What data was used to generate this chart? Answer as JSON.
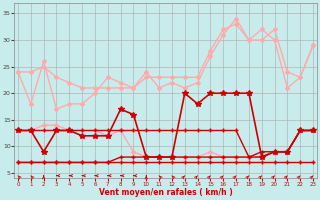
{
  "background_color": "#c8ecec",
  "grid_color": "#aaaaaa",
  "xlabel": "Vent moyen/en rafales ( km/h )",
  "xlabel_color": "#cc0000",
  "yticks": [
    5,
    10,
    15,
    20,
    25,
    30,
    35
  ],
  "xticks": [
    0,
    1,
    2,
    3,
    4,
    5,
    6,
    7,
    8,
    9,
    10,
    11,
    12,
    13,
    14,
    15,
    16,
    17,
    18,
    19,
    20,
    21,
    22,
    23
  ],
  "xlim": [
    -0.3,
    23.3
  ],
  "ylim": [
    4.0,
    37.0
  ],
  "lines": [
    {
      "x": [
        0,
        1,
        2,
        3,
        4,
        5,
        6,
        7,
        8,
        9,
        10,
        11,
        12,
        13,
        14,
        15,
        16,
        17,
        18,
        19,
        20,
        21,
        22,
        23
      ],
      "y": [
        24,
        24,
        25,
        23,
        22,
        21,
        21,
        21,
        21,
        21,
        23,
        23,
        23,
        23,
        23,
        28,
        32,
        33,
        30,
        30,
        32,
        24,
        23,
        29
      ],
      "color": "#ffaaaa",
      "lw": 1.0,
      "marker": "D",
      "ms": 2.0
    },
    {
      "x": [
        0,
        1,
        2,
        3,
        4,
        5,
        6,
        7,
        8,
        9,
        10,
        11,
        12,
        13,
        14,
        15,
        16,
        17,
        18,
        19,
        20,
        21,
        22,
        23
      ],
      "y": [
        24,
        18,
        26,
        17,
        18,
        18,
        20,
        23,
        22,
        21,
        24,
        21,
        22,
        21,
        22,
        27,
        31,
        34,
        30,
        32,
        30,
        21,
        23,
        29
      ],
      "color": "#ffaaaa",
      "lw": 1.0,
      "marker": "D",
      "ms": 2.0
    },
    {
      "x": [
        0,
        1,
        2,
        3,
        4,
        5,
        6,
        7,
        8,
        9,
        10,
        11,
        12,
        13,
        14,
        15,
        16,
        17,
        18,
        19,
        20,
        21,
        22,
        23
      ],
      "y": [
        13,
        13,
        14,
        14,
        13,
        13,
        13,
        12,
        13,
        9,
        8,
        8,
        8,
        8,
        8,
        9,
        8,
        8,
        8,
        8,
        9,
        9,
        13,
        13
      ],
      "color": "#ffaaaa",
      "lw": 1.0,
      "marker": "D",
      "ms": 2.0
    },
    {
      "x": [
        0,
        1,
        2,
        3,
        4,
        5,
        6,
        7,
        8,
        9,
        10,
        11,
        12,
        13,
        14,
        15,
        16,
        17,
        18,
        19,
        20,
        21,
        22,
        23
      ],
      "y": [
        13,
        13,
        9,
        13,
        13,
        12,
        12,
        12,
        17,
        16,
        8,
        8,
        8,
        20,
        18,
        20,
        20,
        20,
        20,
        8,
        9,
        9,
        13,
        13
      ],
      "color": "#cc0000",
      "lw": 1.2,
      "marker": "*",
      "ms": 4.0
    },
    {
      "x": [
        0,
        1,
        2,
        3,
        4,
        5,
        6,
        7,
        8,
        9,
        10,
        11,
        12,
        13,
        14,
        15,
        16,
        17,
        18,
        19,
        20,
        21,
        22,
        23
      ],
      "y": [
        13,
        13,
        13,
        13,
        13,
        13,
        13,
        13,
        13,
        13,
        13,
        13,
        13,
        13,
        13,
        13,
        13,
        13,
        8,
        9,
        9,
        9,
        13,
        13
      ],
      "color": "#cc0000",
      "lw": 1.0,
      "marker": "+",
      "ms": 3.5
    },
    {
      "x": [
        0,
        1,
        2,
        3,
        4,
        5,
        6,
        7,
        8,
        9,
        10,
        11,
        12,
        13,
        14,
        15,
        16,
        17,
        18,
        19,
        20,
        21,
        22,
        23
      ],
      "y": [
        7,
        7,
        7,
        7,
        7,
        7,
        7,
        7,
        7,
        7,
        7,
        7,
        7,
        7,
        7,
        7,
        7,
        7,
        7,
        7,
        7,
        7,
        7,
        7
      ],
      "color": "#cc0000",
      "lw": 1.0,
      "marker": "+",
      "ms": 3.0
    },
    {
      "x": [
        0,
        1,
        2,
        3,
        4,
        5,
        6,
        7,
        8,
        9,
        10,
        11,
        12,
        13,
        14,
        15,
        16,
        17,
        18,
        19,
        20,
        21,
        22,
        23
      ],
      "y": [
        7,
        7,
        7,
        7,
        7,
        7,
        7,
        7,
        8,
        8,
        8,
        8,
        8,
        8,
        8,
        8,
        8,
        8,
        8,
        8,
        9,
        9,
        13,
        13
      ],
      "color": "#cc0000",
      "lw": 1.0,
      "marker": "+",
      "ms": 2.5
    }
  ],
  "wind_arrows": {
    "x": [
      0,
      1,
      2,
      3,
      4,
      5,
      6,
      7,
      8,
      9,
      10,
      11,
      12,
      13,
      14,
      15,
      16,
      17,
      18,
      19,
      20,
      21,
      22,
      23
    ],
    "dirs": [
      315,
      315,
      0,
      270,
      270,
      270,
      270,
      270,
      270,
      270,
      0,
      315,
      315,
      45,
      45,
      45,
      45,
      45,
      45,
      45,
      45,
      45,
      45,
      45
    ],
    "color": "#cc0000",
    "y": 4.5
  }
}
